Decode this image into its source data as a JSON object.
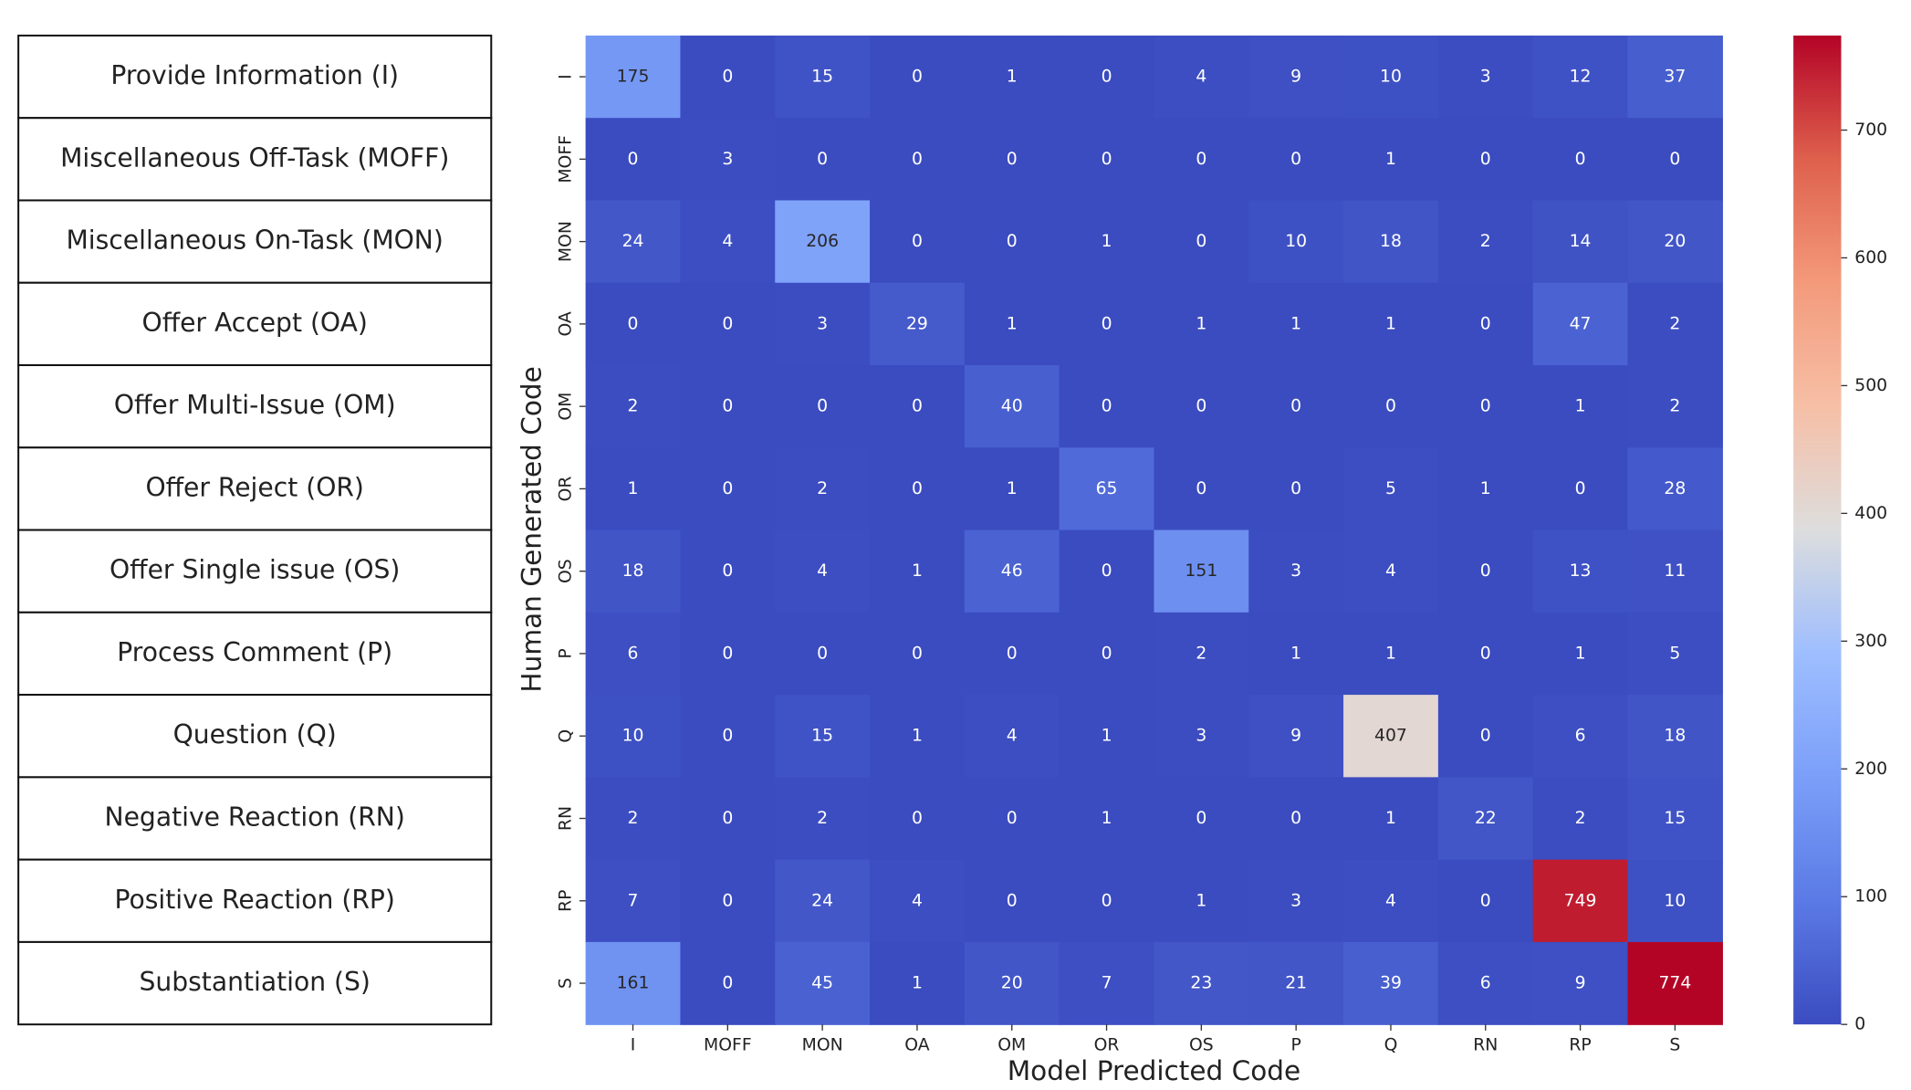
{
  "table": {
    "rows": [
      "Provide Information (I)",
      "Miscellaneous Off-Task (MOFF)",
      "Miscellaneous On-Task (MON)",
      "Offer Accept (OA)",
      "Offer Multi-Issue (OM)",
      "Offer Reject (OR)",
      "Offer Single issue (OS)",
      "Process Comment (P)",
      "Question (Q)",
      "Negative Reaction (RN)",
      "Positive Reaction (RP)",
      "Substantiation (S)"
    ]
  },
  "chart_data": {
    "type": "heatmap",
    "xlabel": "Model Predicted Code",
    "ylabel": "Human Generated Code",
    "x": [
      "I",
      "MOFF",
      "MON",
      "OA",
      "OM",
      "OR",
      "OS",
      "P",
      "Q",
      "RN",
      "RP",
      "S"
    ],
    "y": [
      "I",
      "MOFF",
      "MON",
      "OA",
      "OM",
      "OR",
      "OS",
      "P",
      "Q",
      "RN",
      "RP",
      "S"
    ],
    "values": [
      [
        175,
        0,
        15,
        0,
        1,
        0,
        4,
        9,
        10,
        3,
        12,
        37
      ],
      [
        0,
        3,
        0,
        0,
        0,
        0,
        0,
        0,
        1,
        0,
        0,
        0
      ],
      [
        24,
        4,
        206,
        0,
        0,
        1,
        0,
        10,
        18,
        2,
        14,
        20
      ],
      [
        0,
        0,
        3,
        29,
        1,
        0,
        1,
        1,
        1,
        0,
        47,
        2
      ],
      [
        2,
        0,
        0,
        0,
        40,
        0,
        0,
        0,
        0,
        0,
        1,
        2
      ],
      [
        1,
        0,
        2,
        0,
        1,
        65,
        0,
        0,
        5,
        1,
        0,
        28
      ],
      [
        18,
        0,
        4,
        1,
        46,
        0,
        151,
        3,
        4,
        0,
        13,
        11
      ],
      [
        6,
        0,
        0,
        0,
        0,
        0,
        2,
        1,
        1,
        0,
        1,
        5
      ],
      [
        10,
        0,
        15,
        1,
        4,
        1,
        3,
        9,
        407,
        0,
        6,
        18
      ],
      [
        2,
        0,
        2,
        0,
        0,
        1,
        0,
        0,
        1,
        22,
        2,
        15
      ],
      [
        7,
        0,
        24,
        4,
        0,
        0,
        1,
        3,
        4,
        0,
        749,
        10
      ],
      [
        161,
        0,
        45,
        1,
        20,
        7,
        23,
        21,
        39,
        6,
        9,
        774
      ]
    ],
    "colormap": "coolwarm",
    "clim": [
      0,
      774
    ],
    "cticks": [
      0,
      100,
      200,
      300,
      400,
      500,
      600,
      700
    ]
  }
}
